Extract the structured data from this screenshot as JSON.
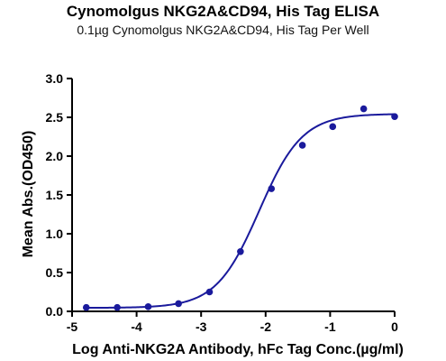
{
  "chart_data": {
    "type": "scatter",
    "title": "Cynomolgus NKG2A&CD94, His Tag ELISA",
    "subtitle": "0.1µg Cynomolgus NKG2A&CD94, His Tag Per Well",
    "xlabel": "Log Anti-NKG2A Antibody, hFc Tag Conc.(µg/ml)",
    "ylabel": "Mean Abs.(OD450)",
    "xlim": [
      -5,
      0
    ],
    "ylim": [
      0,
      3.0
    ],
    "xticks": [
      "-5",
      "-4",
      "-3",
      "-2",
      "-1",
      "0"
    ],
    "yticks": [
      "0.0",
      "0.5",
      "1.0",
      "1.5",
      "2.0",
      "2.5",
      "3.0"
    ],
    "grid": false,
    "series": [
      {
        "color": "#1a1a9c",
        "x": [
          -4.78,
          -4.3,
          -3.82,
          -3.35,
          -2.87,
          -2.39,
          -1.91,
          -1.43,
          -0.96,
          -0.48,
          0.0
        ],
        "y": [
          0.05,
          0.05,
          0.06,
          0.1,
          0.25,
          0.77,
          1.58,
          2.14,
          2.38,
          2.61,
          2.51
        ]
      }
    ],
    "fit": {
      "model": "4PL",
      "bottom": 0.045,
      "top": 2.545,
      "logEC50": -2.1,
      "hill": 1.3
    }
  }
}
